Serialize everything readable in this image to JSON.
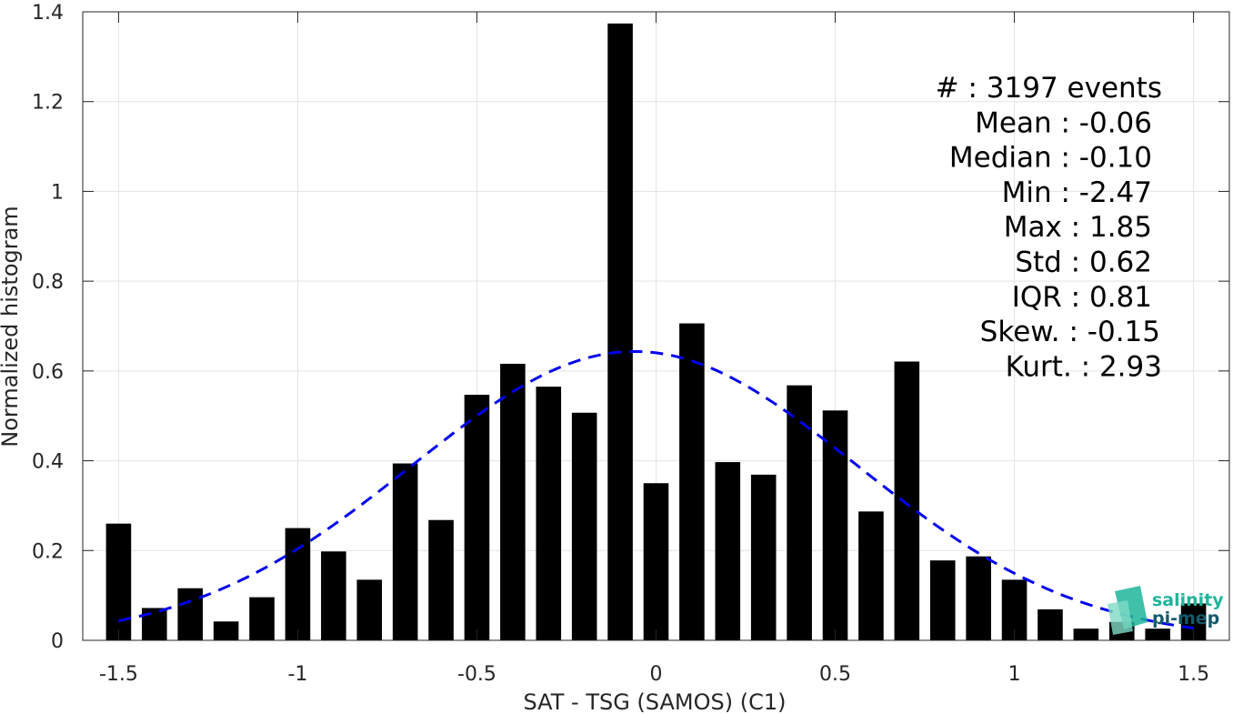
{
  "chart_data": {
    "type": "bar",
    "xlabel": "SAT - TSG (SAMOS) (C1)",
    "ylabel": "Normalized histogram",
    "xlim": [
      -1.6,
      1.6
    ],
    "ylim": [
      0,
      1.4
    ],
    "xticks": [
      -1.5,
      -1,
      -0.5,
      0,
      0.5,
      1,
      1.5
    ],
    "xtick_labels": [
      "-1.5",
      "-1",
      "-0.5",
      "0",
      "0.5",
      "1",
      "1.5"
    ],
    "yticks": [
      0,
      0.2,
      0.4,
      0.6,
      0.8,
      1,
      1.2,
      1.4
    ],
    "ytick_labels": [
      "0",
      "0.2",
      "0.4",
      "0.6",
      "0.8",
      "1",
      "1.2",
      "1.4"
    ],
    "grid": true,
    "bar_width": 0.07,
    "bar_color": "#000000",
    "bins": [
      {
        "x": -1.5,
        "value": 0.26
      },
      {
        "x": -1.4,
        "value": 0.072
      },
      {
        "x": -1.3,
        "value": 0.116
      },
      {
        "x": -1.2,
        "value": 0.042
      },
      {
        "x": -1.1,
        "value": 0.096
      },
      {
        "x": -1.0,
        "value": 0.25
      },
      {
        "x": -0.9,
        "value": 0.198
      },
      {
        "x": -0.8,
        "value": 0.135
      },
      {
        "x": -0.7,
        "value": 0.394
      },
      {
        "x": -0.6,
        "value": 0.268
      },
      {
        "x": -0.5,
        "value": 0.547
      },
      {
        "x": -0.4,
        "value": 0.616
      },
      {
        "x": -0.3,
        "value": 0.565
      },
      {
        "x": -0.2,
        "value": 0.507
      },
      {
        "x": -0.1,
        "value": 1.374
      },
      {
        "x": 0.0,
        "value": 0.35
      },
      {
        "x": 0.1,
        "value": 0.706
      },
      {
        "x": 0.2,
        "value": 0.397
      },
      {
        "x": 0.3,
        "value": 0.369
      },
      {
        "x": 0.4,
        "value": 0.568
      },
      {
        "x": 0.5,
        "value": 0.512
      },
      {
        "x": 0.6,
        "value": 0.287
      },
      {
        "x": 0.7,
        "value": 0.621
      },
      {
        "x": 0.8,
        "value": 0.178
      },
      {
        "x": 0.9,
        "value": 0.187
      },
      {
        "x": 1.0,
        "value": 0.135
      },
      {
        "x": 1.1,
        "value": 0.069
      },
      {
        "x": 1.2,
        "value": 0.026
      },
      {
        "x": 1.3,
        "value": 0.041
      },
      {
        "x": 1.4,
        "value": 0.026
      },
      {
        "x": 1.5,
        "value": 0.082
      }
    ],
    "fit_curve": {
      "style": "dashed",
      "color": "#0000ee",
      "mean": -0.06,
      "std": 0.62,
      "x_range": [
        -1.5,
        1.5
      ]
    },
    "stats": [
      {
        "label": "#  : 3197 events"
      },
      {
        "label": "Mean : -0.06"
      },
      {
        "label": "Median : -0.10"
      },
      {
        "label": "Min : -2.47"
      },
      {
        "label": "Max : 1.85"
      },
      {
        "label": "Std : 0.62"
      },
      {
        "label": "IQR : 0.81"
      },
      {
        "label": "Skew. : -0.15"
      },
      {
        "label": "Kurt. : 2.93"
      }
    ]
  },
  "logo": {
    "line1": "salinity",
    "line2": "pi-mep",
    "color1": "#1fb59a",
    "color2": "#155a6b"
  }
}
